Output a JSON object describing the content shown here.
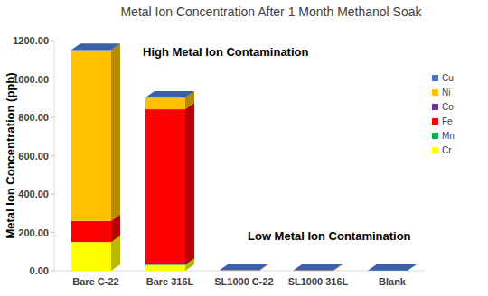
{
  "chart_data": {
    "type": "bar",
    "stacked": true,
    "title": "Metal Ion Concentration After 1 Month Methanol Soak",
    "y_label": "Metal Ion Concentration (ppb)",
    "annotations": [
      "High Metal Ion Contamination",
      "Low Metal Ion Contamination"
    ],
    "categories": [
      "Bare C-22",
      "Bare 316L",
      "SL1000 C-22",
      "SL1000 316L",
      "Blank"
    ],
    "series": [
      {
        "name": "Cr",
        "color": "#ffff00",
        "values": [
          150,
          30,
          0,
          0,
          0
        ]
      },
      {
        "name": "Mn",
        "color": "#00b050",
        "values": [
          0,
          2,
          0,
          0,
          0
        ]
      },
      {
        "name": "Fe",
        "color": "#ff0000",
        "values": [
          110,
          810,
          1,
          2,
          0
        ]
      },
      {
        "name": "Co",
        "color": "#7030a0",
        "values": [
          0,
          0,
          0,
          0,
          0
        ]
      },
      {
        "name": "Ni",
        "color": "#ffc000",
        "values": [
          890,
          60,
          1,
          1,
          0
        ]
      },
      {
        "name": "Cu",
        "color": "#4472c4",
        "values": [
          2,
          2,
          1,
          1,
          1
        ]
      }
    ],
    "ylim": [
      0,
      1200
    ],
    "yticks": [
      {
        "value": 0,
        "label": "0.00"
      },
      {
        "value": 200,
        "label": "200.00"
      },
      {
        "value": 400,
        "label": "400.00"
      },
      {
        "value": 600,
        "label": "600.00"
      },
      {
        "value": 800,
        "label": "800.00"
      },
      {
        "value": 1000,
        "label": "1000.00"
      },
      {
        "value": 1200,
        "label": "1200.00"
      }
    ],
    "grid": false,
    "legend": "top right"
  }
}
